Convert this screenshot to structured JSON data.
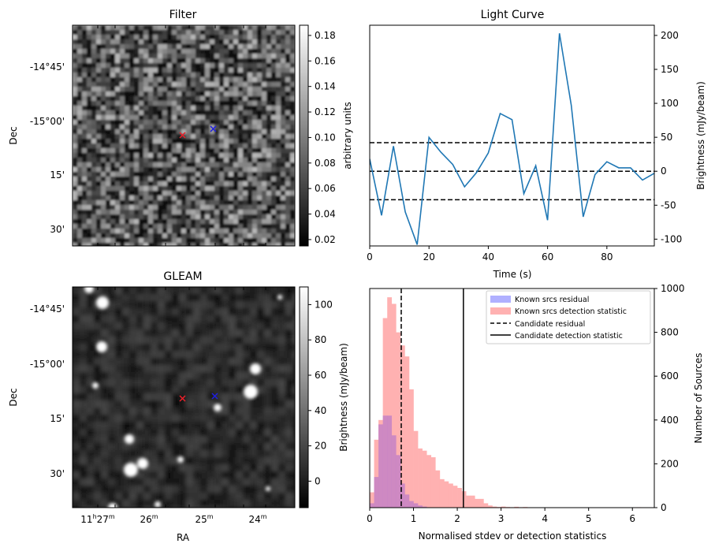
{
  "chart_data": [
    {
      "type": "heatmap",
      "title": "Filter",
      "xlabel": "",
      "ylabel": "Dec",
      "y_ticks": [
        "-14°45'",
        "-15°00'",
        "15'",
        "30'"
      ],
      "colorbar": {
        "label": "arbitrary units",
        "range": [
          0.015,
          0.188
        ],
        "ticks": [
          "0.02",
          "0.04",
          "0.06",
          "0.08",
          "0.10",
          "0.12",
          "0.14",
          "0.16",
          "0.18"
        ],
        "tick_values": [
          0.02,
          0.04,
          0.06,
          0.08,
          0.1,
          0.12,
          0.14,
          0.16,
          0.18
        ]
      },
      "colormap": "gray",
      "markers": [
        {
          "symbol": "x",
          "color": "#e8202a"
        },
        {
          "symbol": "x",
          "color": "#1f1fe0"
        }
      ]
    },
    {
      "type": "line",
      "title": "Light Curve",
      "xlabel": "Time (s)",
      "ylabel": "Brightness (mJy/beam)",
      "xlim": [
        0,
        96
      ],
      "ylim": [
        -110,
        215
      ],
      "x_ticks": [
        0,
        20,
        40,
        60,
        80
      ],
      "y_ticks": [
        -100,
        -50,
        0,
        50,
        100,
        150,
        200
      ],
      "x": [
        0,
        4,
        8,
        12,
        16,
        20,
        24,
        28,
        32,
        36,
        40,
        44,
        48,
        52,
        56,
        60,
        64,
        68,
        72,
        76,
        80,
        84,
        88,
        92,
        96
      ],
      "y": [
        18,
        -65,
        37,
        -60,
        -108,
        50,
        28,
        10,
        -23,
        -2,
        27,
        85,
        76,
        -33,
        8,
        -72,
        203,
        97,
        -67,
        -5,
        14,
        5,
        5,
        -13,
        -3
      ],
      "color": "#1f77b4",
      "hlines": [
        42,
        0,
        -42
      ]
    },
    {
      "type": "heatmap",
      "title": "GLEAM",
      "xlabel": "RA",
      "ylabel": "Dec",
      "y_ticks": [
        "-14°45'",
        "-15°00'",
        "15'",
        "30'"
      ],
      "x_ticks": [
        {
          "main": "11",
          "sup1": "h",
          "mid": "27",
          "sup2": "m"
        },
        {
          "main": "26",
          "sup2": "m"
        },
        {
          "main": "25",
          "sup2": "m"
        },
        {
          "main": "24",
          "sup2": "m"
        }
      ],
      "colorbar": {
        "label": "Brightness (mJy/beam)",
        "range": [
          -15,
          110
        ],
        "ticks": [
          "0",
          "20",
          "40",
          "60",
          "80",
          "100"
        ],
        "tick_values": [
          0,
          20,
          40,
          60,
          80,
          100
        ]
      },
      "colormap": "gray",
      "markers": [
        {
          "symbol": "x",
          "color": "#e8202a"
        },
        {
          "symbol": "x",
          "color": "#1f1fe0"
        }
      ]
    },
    {
      "type": "bar",
      "title": "",
      "xlabel": "Normalised stdev or detection statistics",
      "ylabel": "Number of Sources",
      "xlim": [
        0,
        6.5
      ],
      "ylim": [
        0,
        1000
      ],
      "x_ticks": [
        0,
        1,
        2,
        3,
        4,
        5,
        6
      ],
      "y_ticks": [
        0,
        200,
        400,
        600,
        800,
        1000
      ],
      "bin_width": 0.1,
      "series": [
        {
          "name": "Known srcs detection statistic",
          "color": "#ffb1b1",
          "bin_start": 0,
          "values": [
            70,
            310,
            400,
            865,
            960,
            930,
            800,
            740,
            690,
            540,
            350,
            270,
            260,
            240,
            230,
            170,
            130,
            120,
            110,
            100,
            90,
            75,
            55,
            55,
            40,
            40,
            20,
            10,
            5,
            3,
            5,
            3,
            2,
            4,
            2,
            3,
            1,
            1,
            1,
            1,
            1,
            1,
            1,
            1,
            1,
            1,
            0,
            0,
            0,
            0,
            0,
            0,
            0,
            0,
            0,
            0,
            0,
            0,
            0,
            0,
            1,
            2
          ]
        },
        {
          "name": "Known srcs residual",
          "color": "#b0b0ff",
          "bin_start": 0,
          "values": [
            20,
            140,
            380,
            420,
            420,
            330,
            240,
            110,
            60,
            30,
            20,
            10,
            5,
            0
          ]
        }
      ],
      "vlines": [
        {
          "name": "Candidate residual",
          "x": 0.72,
          "style": "dashed"
        },
        {
          "name": "Candidate detection statistic",
          "x": 2.14,
          "style": "solid"
        }
      ],
      "legend": "top-right"
    }
  ]
}
